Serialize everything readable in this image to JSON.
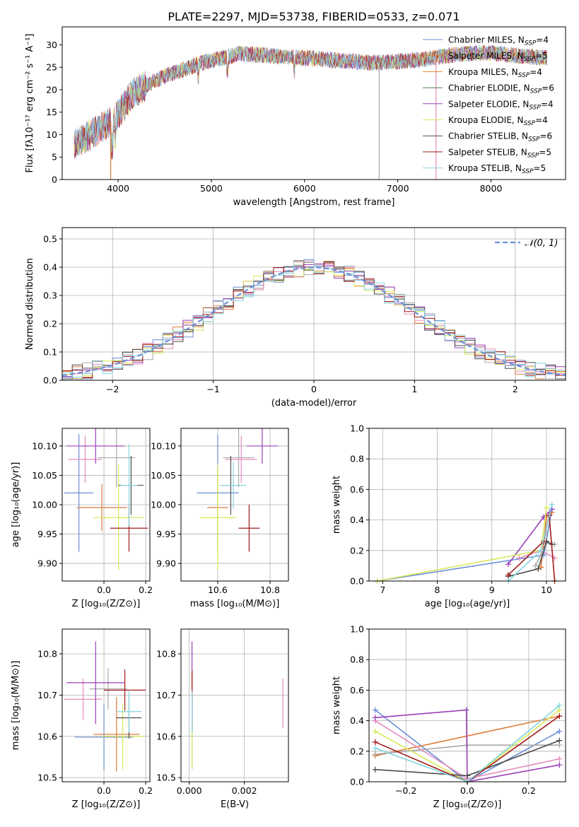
{
  "figure": {
    "title": "PLATE=2297, MJD=53738, FIBERID=0533, z=0.071"
  },
  "colors": {
    "models": [
      "#6b8fd6",
      "#e07b39",
      "#a8a8a8",
      "#e58bbd",
      "#9a3fb8",
      "#d7e85a",
      "#4d4d4d",
      "#a11a1a",
      "#86d4e0"
    ],
    "gauss": "#6b8fd6",
    "grid": "#b0b0b0",
    "legend_colors": [
      "#6b8fd6",
      "#e07b39",
      "#e08a2a",
      "#4f7a4f",
      "#9a3fb8",
      "#d7e85a",
      "#4d4d4d",
      "#a11a1a",
      "#86d4e0"
    ]
  },
  "chart_data": [
    {
      "type": "line",
      "panel": "spectrum",
      "xlabel": "wavelength [Angstrom, rest frame]",
      "ylabel": "Flux [fλ10⁻¹⁷ erg cm⁻² s⁻¹ A⁻¹]",
      "xlim": [
        3400,
        8800
      ],
      "ylim": [
        0,
        34
      ],
      "xticks": [
        "4000",
        "5000",
        "6000",
        "7000",
        "8000"
      ],
      "yticks": [
        "0",
        "5",
        "10",
        "15",
        "20",
        "25",
        "30"
      ],
      "grid": false,
      "legend_position": "right",
      "legend": [
        "Chabrier MILES, N_SSP=4",
        "Salpeter MILES, N_SSP=5",
        "Kroupa MILES, N_SSP=4",
        "Chabrier ELODIE, N_SSP=6",
        "Salpeter ELODIE, N_SSP=4",
        "Kroupa ELODIE, N_SSP=4",
        "Chabrier STELIB, N_SSP=6",
        "Salpeter STELIB, N_SSP=5",
        "Kroupa STELIB, N_SSP=5"
      ],
      "continuum": {
        "x": [
          3550,
          3700,
          3850,
          3950,
          4050,
          4150,
          4300,
          4500,
          4700,
          4900,
          5100,
          5300,
          5500,
          5700,
          5900,
          6100,
          6300,
          6500,
          6700,
          6900,
          7100,
          7300,
          7500,
          7700,
          7900,
          8100,
          8300,
          8500
        ],
        "y": [
          8,
          10,
          12,
          13,
          16,
          19,
          21,
          23,
          24.5,
          26,
          27,
          28,
          27.8,
          27.5,
          27.2,
          27,
          26.6,
          26.3,
          26,
          26.2,
          26.4,
          26.8,
          27.5,
          28,
          28.3,
          28,
          27.5,
          27.2
        ]
      },
      "glitches": [
        {
          "x": 3920,
          "y_min": 0
        },
        {
          "x": 6800,
          "y_min": 0
        },
        {
          "x": 7410,
          "y_min": 0
        }
      ]
    },
    {
      "type": "bar",
      "panel": "residuals",
      "xlabel": "(data-model)/error",
      "ylabel": "Normed distribution",
      "xlim": [
        -2.5,
        2.5
      ],
      "ylim": [
        0,
        0.54
      ],
      "xticks": [
        "−2",
        "−1",
        "0",
        "1",
        "2"
      ],
      "yticks": [
        "0.0",
        "0.1",
        "0.2",
        "0.3",
        "0.4",
        "0.5"
      ],
      "grid": true,
      "legend": [
        "𝒩(0, 1)"
      ],
      "legend_position": "top-right",
      "gauss": {
        "mu": 0,
        "sigma": 1
      },
      "bin_width": 0.1
    },
    {
      "type": "scatter",
      "panel": "age-vs-Z",
      "xlabel": "Z [log₁₀(Z/Z⊙)]",
      "ylabel": "age  [log₁₀(age/yr)]",
      "xlim": [
        -0.2,
        0.22
      ],
      "ylim": [
        9.87,
        10.13
      ],
      "xticks": [
        "0.0",
        "0.2"
      ],
      "yticks": [
        "9.90",
        "9.95",
        "10.00",
        "10.05",
        "10.10"
      ],
      "grid": true,
      "series": [
        {
          "x": -0.12,
          "y": 10.02,
          "xerr": 0.07,
          "yerr": 0.1
        },
        {
          "x": -0.01,
          "y": 9.995,
          "xerr": 0.12,
          "yerr": 0.04
        },
        {
          "x": 0.06,
          "y": 10.08,
          "xerr": 0.09,
          "yerr": 0.05
        },
        {
          "x": -0.09,
          "y": 10.077,
          "xerr": 0.08,
          "yerr": 0.04
        },
        {
          "x": -0.04,
          "y": 10.1,
          "xerr": 0.14,
          "yerr": 0.03
        },
        {
          "x": 0.07,
          "y": 9.978,
          "xerr": 0.12,
          "yerr": 0.09
        },
        {
          "x": 0.13,
          "y": 10.033,
          "xerr": 0.06,
          "yerr": 0.05
        },
        {
          "x": 0.12,
          "y": 9.96,
          "xerr": 0.09,
          "yerr": 0.04
        },
        {
          "x": 0.12,
          "y": 10.033,
          "xerr": 0.04,
          "yerr": 0.07
        }
      ]
    },
    {
      "type": "scatter",
      "panel": "age-vs-mass",
      "xlabel": "mass [log₁₀(M/M⊙)]",
      "ylabel": "",
      "xlim": [
        10.46,
        10.87
      ],
      "ylim": [
        9.87,
        10.13
      ],
      "xticks": [
        "10.6",
        "10.8"
      ],
      "yticks": [
        "9.90",
        "9.95",
        "10.00",
        "10.05",
        "10.10"
      ],
      "grid": true,
      "series": [
        {
          "x": 10.6,
          "y": 10.02,
          "xerr": 0.08,
          "yerr": 0.1
        },
        {
          "x": 10.6,
          "y": 9.995,
          "xerr": 0.04,
          "yerr": 0.07
        },
        {
          "x": 10.68,
          "y": 10.08,
          "xerr": 0.06,
          "yerr": 0.05
        },
        {
          "x": 10.69,
          "y": 10.077,
          "xerr": 0.06,
          "yerr": 0.04
        },
        {
          "x": 10.77,
          "y": 10.1,
          "xerr": 0.06,
          "yerr": 0.03
        },
        {
          "x": 10.6,
          "y": 9.978,
          "xerr": 0.07,
          "yerr": 0.09
        },
        {
          "x": 10.65,
          "y": 10.033,
          "xerr": 0.04,
          "yerr": 0.05
        },
        {
          "x": 10.72,
          "y": 9.96,
          "xerr": 0.04,
          "yerr": 0.04
        },
        {
          "x": 10.66,
          "y": 10.033,
          "xerr": 0.05,
          "yerr": 0.04
        }
      ]
    },
    {
      "type": "line",
      "panel": "mass-weight-vs-age",
      "xlabel": "age  [log₁₀(age/yr)]",
      "ylabel": "mass weight",
      "xlim": [
        6.75,
        10.35
      ],
      "ylim": [
        0,
        1
      ],
      "xticks": [
        "7",
        "8",
        "9",
        "10"
      ],
      "yticks": [
        "0.0",
        "0.2",
        "0.4",
        "0.6",
        "0.8",
        "1.0"
      ],
      "grid": true,
      "series": [
        {
          "x": [
            6.9,
            9.95,
            10.1
          ],
          "y": [
            0.0,
            0.17,
            0.47
          ]
        },
        {
          "x": [
            9.9,
            10.0,
            10.1
          ],
          "y": [
            0.09,
            0.42,
            0.45
          ]
        },
        {
          "x": [
            9.8,
            10.0,
            10.15
          ],
          "y": [
            0.1,
            0.25,
            0.24
          ]
        },
        {
          "x": [
            9.5,
            9.9,
            10.15
          ],
          "y": [
            0.15,
            0.2,
            0.15
          ]
        },
        {
          "x": [
            9.3,
            9.95,
            10.1
          ],
          "y": [
            0.11,
            0.42,
            0.47
          ]
        },
        {
          "x": [
            6.9,
            9.9,
            10.0
          ],
          "y": [
            0.0,
            0.2,
            0.48
          ]
        },
        {
          "x": [
            9.3,
            9.85,
            10.0,
            10.1
          ],
          "y": [
            0.03,
            0.08,
            0.26,
            0.24
          ]
        },
        {
          "x": [
            9.3,
            9.95,
            10.05,
            10.15
          ],
          "y": [
            0.04,
            0.26,
            0.43,
            0.0
          ]
        },
        {
          "x": [
            9.3,
            9.9,
            10.1
          ],
          "y": [
            0.0,
            0.2,
            0.5
          ]
        }
      ]
    },
    {
      "type": "scatter",
      "panel": "mass-vs-Z",
      "xlabel": "Z [log₁₀(Z/Z⊙)]",
      "ylabel": "mass [log₁₀(M/M⊙)]",
      "xlim": [
        -0.2,
        0.22
      ],
      "ylim": [
        10.49,
        10.86
      ],
      "xticks": [
        "0.0",
        "0.2"
      ],
      "yticks": [
        "10.5",
        "10.6",
        "10.7",
        "10.8"
      ],
      "grid": true,
      "series": [
        {
          "x": 0.0,
          "y": 10.598,
          "xerr": 0.14,
          "yerr": 0.08
        },
        {
          "x": 0.06,
          "y": 10.605,
          "xerr": 0.11,
          "yerr": 0.09
        },
        {
          "x": 0.02,
          "y": 10.715,
          "xerr": 0.09,
          "yerr": 0.05
        },
        {
          "x": -0.1,
          "y": 10.69,
          "xerr": 0.09,
          "yerr": 0.05
        },
        {
          "x": -0.04,
          "y": 10.73,
          "xerr": 0.14,
          "yerr": 0.1
        },
        {
          "x": 0.09,
          "y": 10.6,
          "xerr": 0.1,
          "yerr": 0.08
        },
        {
          "x": 0.12,
          "y": 10.645,
          "xerr": 0.06,
          "yerr": 0.05
        },
        {
          "x": 0.1,
          "y": 10.712,
          "xerr": 0.1,
          "yerr": 0.05
        },
        {
          "x": 0.12,
          "y": 10.66,
          "xerr": 0.06,
          "yerr": 0.05
        }
      ]
    },
    {
      "type": "scatter",
      "panel": "mass-vs-EBV",
      "xlabel": "E(B-V)",
      "ylabel": "",
      "xlim": [
        -0.0003,
        0.0036
      ],
      "ylim": [
        10.49,
        10.86
      ],
      "xticks": [
        "0.000",
        "0.002"
      ],
      "yticks": [
        "10.5",
        "10.6",
        "10.7",
        "10.8"
      ],
      "grid": true,
      "series": [
        {
          "x": 0.0001,
          "y": 10.6,
          "yerr": 0.08
        },
        {
          "x": 0.0001,
          "y": 10.7,
          "yerr": 0.06
        },
        {
          "x": 0.0001,
          "y": 10.66,
          "yerr": 0.04
        },
        {
          "x": 0.0034,
          "y": 10.68,
          "yerr": 0.06
        },
        {
          "x": 0.0001,
          "y": 10.74,
          "yerr": 0.09
        },
        {
          "x": 0.0001,
          "y": 10.58,
          "yerr": 0.06
        },
        {
          "x": 0.0001,
          "y": 10.64,
          "yerr": 0.03
        },
        {
          "x": 0.0001,
          "y": 10.72,
          "yerr": 0.04
        },
        {
          "x": 0.0001,
          "y": 10.66,
          "yerr": 0.05
        }
      ]
    },
    {
      "type": "line",
      "panel": "mass-weight-vs-Z",
      "xlabel": "Z [log₁₀(Z/Z⊙)]",
      "ylabel": "mass weight",
      "xlim": [
        -0.32,
        0.32
      ],
      "ylim": [
        0,
        1
      ],
      "xticks": [
        "−0.2",
        "0.0",
        "0.2"
      ],
      "yticks": [
        "0.0",
        "0.2",
        "0.4",
        "0.6",
        "0.8",
        "1.0"
      ],
      "grid": true,
      "series": [
        {
          "x": [
            -0.3,
            0.0,
            0.3
          ],
          "y": [
            0.47,
            0.0,
            0.33
          ]
        },
        {
          "x": [
            -0.3,
            0.3
          ],
          "y": [
            0.17,
            0.43
          ]
        },
        {
          "x": [
            -0.3,
            0.0,
            0.3
          ],
          "y": [
            0.18,
            0.24,
            0.24
          ]
        },
        {
          "x": [
            -0.3,
            0.0,
            0.3
          ],
          "y": [
            0.4,
            0.02,
            0.15
          ]
        },
        {
          "x": [
            -0.3,
            -0.003,
            0.0,
            0.3
          ],
          "y": [
            0.42,
            0.47,
            0.0,
            0.11
          ]
        },
        {
          "x": [
            -0.3,
            0.0,
            0.3
          ],
          "y": [
            0.33,
            0.0,
            0.47
          ]
        },
        {
          "x": [
            -0.3,
            0.0,
            0.3
          ],
          "y": [
            0.08,
            0.04,
            0.27
          ]
        },
        {
          "x": [
            -0.3,
            0.0,
            0.3
          ],
          "y": [
            0.26,
            0.0,
            0.43
          ]
        },
        {
          "x": [
            -0.3,
            0.0,
            0.3
          ],
          "y": [
            0.22,
            0.0,
            0.5
          ]
        }
      ]
    }
  ]
}
